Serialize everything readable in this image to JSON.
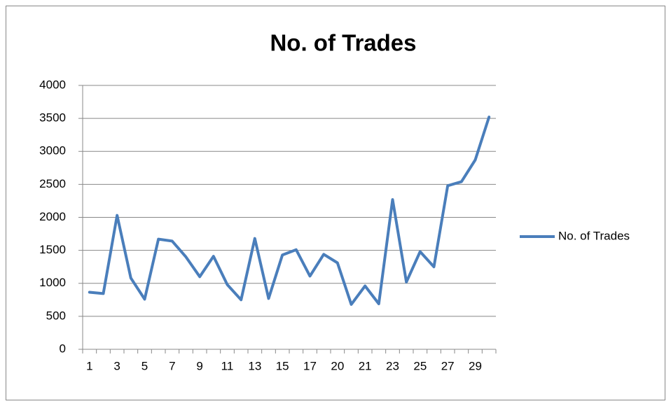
{
  "chart_data": {
    "type": "line",
    "title": "No. of Trades",
    "categories": [
      1,
      null,
      3,
      null,
      5,
      null,
      7,
      null,
      9,
      null,
      11,
      null,
      13,
      null,
      15,
      null,
      17,
      null,
      20,
      null,
      21,
      null,
      23,
      null,
      25,
      null,
      27,
      null,
      29,
      null
    ],
    "series": [
      {
        "name": "No. of Trades",
        "color": "#4a7ebb",
        "values": [
          865,
          845,
          2030,
          1080,
          760,
          1670,
          1640,
          1400,
          1100,
          1410,
          980,
          750,
          1680,
          770,
          1430,
          1510,
          1110,
          1440,
          1310,
          680,
          960,
          690,
          2270,
          1020,
          1480,
          1250,
          2480,
          2540,
          2870,
          3520
        ]
      }
    ],
    "ylim": [
      0,
      4000
    ],
    "yticks": [
      0,
      500,
      1000,
      1500,
      2000,
      2500,
      3000,
      3500,
      4000
    ],
    "grid": true,
    "legend": "right"
  }
}
